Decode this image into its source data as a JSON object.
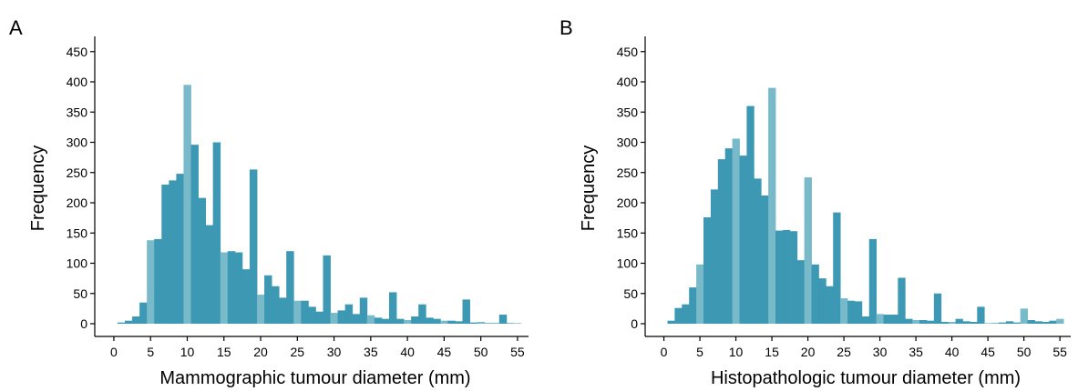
{
  "chart_data": [
    {
      "type": "bar",
      "panel": "A",
      "xlabel": "Mammographic tumour diameter (mm)",
      "ylabel": "Frequency",
      "xlim": [
        -2.6,
        56.5
      ],
      "ylim": [
        0,
        470
      ],
      "xticks": [
        0,
        5,
        10,
        15,
        20,
        25,
        30,
        35,
        40,
        45,
        50,
        55
      ],
      "yticks": [
        0,
        50,
        100,
        150,
        200,
        250,
        300,
        350,
        400,
        450
      ],
      "bin_width_mm": 1,
      "colors": {
        "regular": "#3C98B3",
        "multiple_of_5": "#78BAC9"
      },
      "x": [
        1,
        2,
        3,
        4,
        5,
        6,
        7,
        8,
        9,
        10,
        11,
        12,
        13,
        14,
        15,
        16,
        17,
        18,
        19,
        20,
        21,
        22,
        23,
        24,
        25,
        26,
        27,
        28,
        29,
        30,
        31,
        32,
        33,
        34,
        35,
        36,
        37,
        38,
        39,
        40,
        41,
        42,
        43,
        44,
        45,
        46,
        47,
        48,
        49,
        50,
        51,
        52,
        53,
        54,
        55
      ],
      "values": [
        2,
        5,
        12,
        35,
        138,
        140,
        230,
        237,
        248,
        395,
        296,
        208,
        163,
        300,
        118,
        120,
        118,
        90,
        255,
        48,
        80,
        62,
        43,
        120,
        38,
        38,
        28,
        20,
        113,
        18,
        22,
        32,
        16,
        43,
        14,
        10,
        8,
        52,
        8,
        6,
        12,
        32,
        10,
        8,
        5,
        5,
        4,
        40,
        2,
        3,
        1,
        1,
        15,
        1,
        1
      ]
    },
    {
      "type": "bar",
      "panel": "B",
      "xlabel": "Histopathologic tumour diameter (mm)",
      "ylabel": "Frequency",
      "xlim": [
        -2.6,
        56.5
      ],
      "ylim": [
        0,
        470
      ],
      "xticks": [
        0,
        5,
        10,
        15,
        20,
        25,
        30,
        35,
        40,
        45,
        50,
        55
      ],
      "yticks": [
        0,
        50,
        100,
        150,
        200,
        250,
        300,
        350,
        400,
        450
      ],
      "bin_width_mm": 1,
      "colors": {
        "regular": "#3C98B3",
        "multiple_of_5": "#78BAC9"
      },
      "x": [
        1,
        2,
        3,
        4,
        5,
        6,
        7,
        8,
        9,
        10,
        11,
        12,
        13,
        14,
        15,
        16,
        17,
        18,
        19,
        20,
        21,
        22,
        23,
        24,
        25,
        26,
        27,
        28,
        29,
        30,
        31,
        32,
        33,
        34,
        35,
        36,
        37,
        38,
        39,
        40,
        41,
        42,
        43,
        44,
        45,
        46,
        47,
        48,
        49,
        50,
        51,
        52,
        53,
        54,
        55
      ],
      "values": [
        5,
        26,
        32,
        60,
        98,
        176,
        222,
        272,
        290,
        306,
        278,
        360,
        240,
        212,
        390,
        154,
        155,
        153,
        105,
        242,
        98,
        75,
        62,
        184,
        42,
        38,
        37,
        12,
        140,
        16,
        15,
        15,
        76,
        8,
        6,
        6,
        5,
        50,
        3,
        3,
        8,
        4,
        3,
        28,
        1,
        1,
        2,
        4,
        2,
        25,
        6,
        4,
        3,
        5,
        8
      ]
    }
  ],
  "panels": [
    {
      "letter": "A",
      "xlabel": "Mammographic tumour diameter (mm)",
      "ylabel": "Frequency"
    },
    {
      "letter": "B",
      "xlabel": "Histopathologic tumour diameter (mm)",
      "ylabel": "Frequency"
    }
  ]
}
